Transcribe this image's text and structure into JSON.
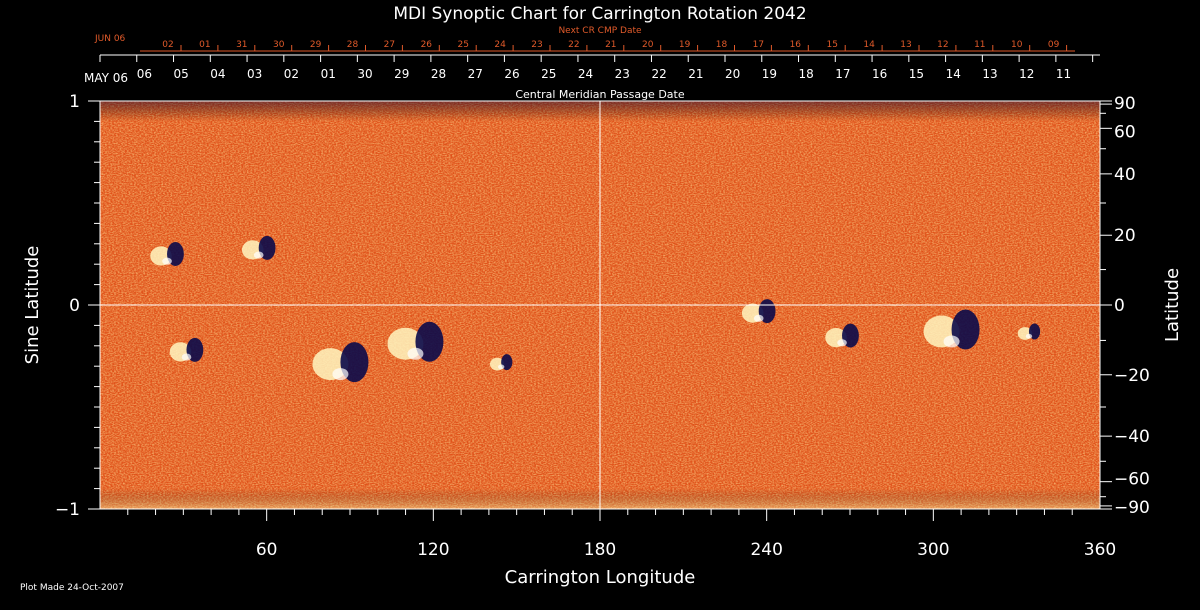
{
  "chart_data": {
    "type": "heatmap",
    "title": "MDI Synoptic Chart for Carrington Rotation 2042",
    "xlabel": "Carrington Longitude",
    "ylabel_left": "Sine Latitude",
    "ylabel_right": "Latitude",
    "xlim": [
      0,
      360
    ],
    "ylim": [
      -1,
      1
    ],
    "x_ticks": [
      60,
      120,
      180,
      240,
      300,
      360
    ],
    "y_ticks_left": [
      {
        "value": 1,
        "label": "1"
      },
      {
        "value": 0,
        "label": "0"
      },
      {
        "value": -1,
        "label": "−1"
      }
    ],
    "y_ticks_right": [
      90,
      60,
      40,
      20,
      0,
      -20,
      -40,
      -60,
      -90
    ],
    "top_axis": {
      "label": "Central Meridian Passage Date",
      "start_label": "MAY 06",
      "dates": [
        "06",
        "05",
        "04",
        "03",
        "02",
        "01",
        "30",
        "29",
        "28",
        "27",
        "26",
        "25",
        "24",
        "23",
        "22",
        "21",
        "20",
        "19",
        "18",
        "17",
        "16",
        "15",
        "14",
        "13",
        "12",
        "11"
      ]
    },
    "next_cr_axis": {
      "label": "Next CR CMP Date",
      "start_label": "JUN 06",
      "dates": [
        "02",
        "01",
        "31",
        "30",
        "29",
        "28",
        "27",
        "26",
        "25",
        "24",
        "23",
        "22",
        "21",
        "20",
        "19",
        "18",
        "17",
        "16",
        "15",
        "14",
        "13",
        "12",
        "11",
        "10",
        "09"
      ]
    },
    "active_regions": [
      {
        "lon": 88,
        "sinlat": -0.28,
        "polarity": "mixed",
        "strength": "strong"
      },
      {
        "lon": 115,
        "sinlat": -0.18,
        "polarity": "mixed",
        "strength": "strong"
      },
      {
        "lon": 25,
        "sinlat": 0.25,
        "polarity": "mixed",
        "strength": "medium"
      },
      {
        "lon": 58,
        "sinlat": 0.28,
        "polarity": "mixed",
        "strength": "medium"
      },
      {
        "lon": 32,
        "sinlat": -0.22,
        "polarity": "mixed",
        "strength": "medium"
      },
      {
        "lon": 145,
        "sinlat": -0.28,
        "polarity": "mixed",
        "strength": "weak"
      },
      {
        "lon": 238,
        "sinlat": -0.03,
        "polarity": "mixed",
        "strength": "medium"
      },
      {
        "lon": 268,
        "sinlat": -0.15,
        "polarity": "mixed",
        "strength": "medium"
      },
      {
        "lon": 308,
        "sinlat": -0.12,
        "polarity": "mixed",
        "strength": "strong"
      },
      {
        "lon": 335,
        "sinlat": -0.13,
        "polarity": "mixed",
        "strength": "weak"
      }
    ],
    "colors": {
      "background": "#e0521a",
      "positive": "#fff6c0",
      "negative": "#0a0a4a",
      "grid": "#ffffff"
    }
  },
  "footer": {
    "plot_made": "Plot Made 24-Oct-2007"
  }
}
